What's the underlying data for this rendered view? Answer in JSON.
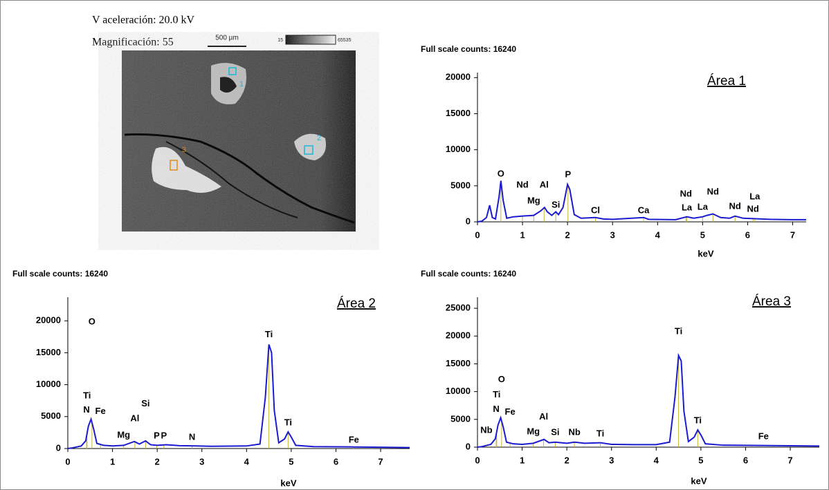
{
  "image_panel": {
    "voltage": "V aceleración: 20.0 kV",
    "magnification": "Magnificación: 55",
    "scale_bar": "500 µm",
    "gray_min": "15",
    "gray_max": "65535",
    "markers": [
      {
        "label": "1",
        "color": "#19b8d8"
      },
      {
        "label": "2",
        "color": "#19b8d8"
      },
      {
        "label": "3",
        "color": "#e08a1a"
      }
    ]
  },
  "chart_data": [
    {
      "type": "line",
      "title": "Full scale counts: 16240",
      "area_label": "Área 1",
      "x_label": "keV",
      "color": "#1a1ad0",
      "x": [
        0,
        0.1,
        0.2,
        0.27,
        0.33,
        0.4,
        0.48,
        0.52,
        0.57,
        0.65,
        0.8,
        1.0,
        1.25,
        1.4,
        1.49,
        1.55,
        1.65,
        1.74,
        1.8,
        1.9,
        2.0,
        2.05,
        2.15,
        2.3,
        2.62,
        2.8,
        3.0,
        3.69,
        3.8,
        4.4,
        4.65,
        4.8,
        5.0,
        5.1,
        5.23,
        5.4,
        5.6,
        5.72,
        5.9,
        6.1,
        6.5,
        7.0,
        7.3
      ],
      "values": [
        0,
        100,
        600,
        2300,
        600,
        400,
        3500,
        5700,
        3000,
        500,
        700,
        800,
        900,
        1500,
        2000,
        1400,
        900,
        1400,
        1000,
        2000,
        5200,
        4500,
        1000,
        500,
        600,
        400,
        350,
        600,
        350,
        300,
        700,
        500,
        700,
        900,
        1100,
        600,
        500,
        800,
        500,
        450,
        350,
        300,
        300
      ],
      "annotations": [
        {
          "text": "O",
          "x": 0.52,
          "y": 6600
        },
        {
          "text": "Nd",
          "x": 1.0,
          "y": 5070
        },
        {
          "text": "Al",
          "x": 1.48,
          "y": 5070
        },
        {
          "text": "Mg",
          "x": 1.25,
          "y": 2870
        },
        {
          "text": "Si",
          "x": 1.74,
          "y": 2300
        },
        {
          "text": "P",
          "x": 2.01,
          "y": 6500
        },
        {
          "text": "Cl",
          "x": 2.62,
          "y": 1530
        },
        {
          "text": "Ca",
          "x": 3.69,
          "y": 1530
        },
        {
          "text": "Nd",
          "x": 4.63,
          "y": 3830
        },
        {
          "text": "La",
          "x": 4.65,
          "y": 1900
        },
        {
          "text": "La",
          "x": 5.0,
          "y": 2000
        },
        {
          "text": "Nd",
          "x": 5.23,
          "y": 4100
        },
        {
          "text": "Nd",
          "x": 5.72,
          "y": 2100
        },
        {
          "text": "La",
          "x": 6.16,
          "y": 3440
        },
        {
          "text": "Nd",
          "x": 6.12,
          "y": 1720
        }
      ],
      "xlim": [
        0,
        7.3
      ],
      "xticks": [
        0,
        1,
        2,
        3,
        4,
        5,
        6,
        7
      ],
      "ylim": [
        0,
        20700
      ],
      "yticks": [
        0,
        5000,
        10000,
        15000,
        20000
      ]
    },
    {
      "type": "line",
      "title": "Full scale counts: 16240",
      "area_label": "Área 2",
      "x_label": "keV",
      "color": "#1a1ad0",
      "x": [
        0,
        0.1,
        0.3,
        0.4,
        0.46,
        0.52,
        0.58,
        0.65,
        0.8,
        1.0,
        1.25,
        1.49,
        1.6,
        1.74,
        1.85,
        2.0,
        2.2,
        2.5,
        2.9,
        3.2,
        4.0,
        4.3,
        4.42,
        4.5,
        4.56,
        4.62,
        4.72,
        4.85,
        4.93,
        5.0,
        5.1,
        5.5,
        6.4,
        7.0,
        7.65
      ],
      "values": [
        0,
        100,
        400,
        1200,
        3500,
        4600,
        3000,
        800,
        500,
        400,
        500,
        1100,
        700,
        1200,
        600,
        500,
        600,
        450,
        400,
        350,
        400,
        700,
        8000,
        16300,
        15000,
        6000,
        900,
        1500,
        2600,
        1800,
        500,
        300,
        250,
        200,
        150
      ],
      "annotations": [
        {
          "text": "O",
          "x": 0.54,
          "y": 19800
        },
        {
          "text": "Ti",
          "x": 0.43,
          "y": 8200
        },
        {
          "text": "N",
          "x": 0.42,
          "y": 6000
        },
        {
          "text": "Fe",
          "x": 0.73,
          "y": 5800
        },
        {
          "text": "Mg",
          "x": 1.25,
          "y": 2050
        },
        {
          "text": "Al",
          "x": 1.5,
          "y": 4650
        },
        {
          "text": "Si",
          "x": 1.74,
          "y": 7000
        },
        {
          "text": "P",
          "x": 1.99,
          "y": 1950
        },
        {
          "text": "P",
          "x": 2.15,
          "y": 1950
        },
        {
          "text": "N",
          "x": 2.78,
          "y": 1730
        },
        {
          "text": "Ti",
          "x": 4.5,
          "y": 17800
        },
        {
          "text": "Ti",
          "x": 4.93,
          "y": 4000
        },
        {
          "text": "Fe",
          "x": 6.4,
          "y": 1300
        }
      ],
      "xlim": [
        0,
        7.65
      ],
      "xticks": [
        0,
        1,
        2,
        3,
        4,
        5,
        6,
        7
      ],
      "ylim": [
        0,
        23700
      ],
      "yticks": [
        0,
        5000,
        10000,
        15000,
        20000
      ]
    },
    {
      "type": "line",
      "title": "Full scale counts: 16240",
      "area_label": "Área 3",
      "x_label": "keV",
      "color": "#1a1ad0",
      "x": [
        0,
        0.1,
        0.2,
        0.3,
        0.4,
        0.46,
        0.52,
        0.58,
        0.65,
        0.8,
        1.0,
        1.25,
        1.49,
        1.6,
        1.74,
        2.0,
        2.17,
        2.4,
        2.75,
        3.0,
        3.5,
        4.0,
        4.3,
        4.42,
        4.5,
        4.56,
        4.62,
        4.72,
        4.85,
        4.93,
        5.0,
        5.1,
        5.5,
        6.4,
        7.0,
        7.65
      ],
      "values": [
        0,
        100,
        300,
        500,
        1500,
        4000,
        5300,
        3500,
        900,
        600,
        500,
        700,
        1400,
        800,
        900,
        700,
        900,
        700,
        800,
        500,
        450,
        450,
        900,
        9000,
        16500,
        15500,
        6500,
        1000,
        1800,
        3100,
        2200,
        600,
        350,
        300,
        250,
        200
      ],
      "annotations": [
        {
          "text": "O",
          "x": 0.54,
          "y": 12100
        },
        {
          "text": "Ti",
          "x": 0.43,
          "y": 9400
        },
        {
          "text": "N",
          "x": 0.42,
          "y": 6800
        },
        {
          "text": "Fe",
          "x": 0.73,
          "y": 6300
        },
        {
          "text": "Nb",
          "x": 0.2,
          "y": 3000
        },
        {
          "text": "Al",
          "x": 1.48,
          "y": 5400
        },
        {
          "text": "Mg",
          "x": 1.25,
          "y": 2700
        },
        {
          "text": "Si",
          "x": 1.74,
          "y": 2600
        },
        {
          "text": "Nb",
          "x": 2.17,
          "y": 2600
        },
        {
          "text": "Ti",
          "x": 2.75,
          "y": 2350
        },
        {
          "text": "Ti",
          "x": 4.5,
          "y": 20800
        },
        {
          "text": "Ti",
          "x": 4.93,
          "y": 4700
        },
        {
          "text": "Fe",
          "x": 6.4,
          "y": 1850
        }
      ],
      "xlim": [
        0,
        7.65
      ],
      "xticks": [
        0,
        1,
        2,
        3,
        4,
        5,
        6,
        7
      ],
      "ylim": [
        0,
        27000
      ],
      "yticks": [
        0,
        5000,
        10000,
        15000,
        20000,
        25000
      ]
    }
  ]
}
